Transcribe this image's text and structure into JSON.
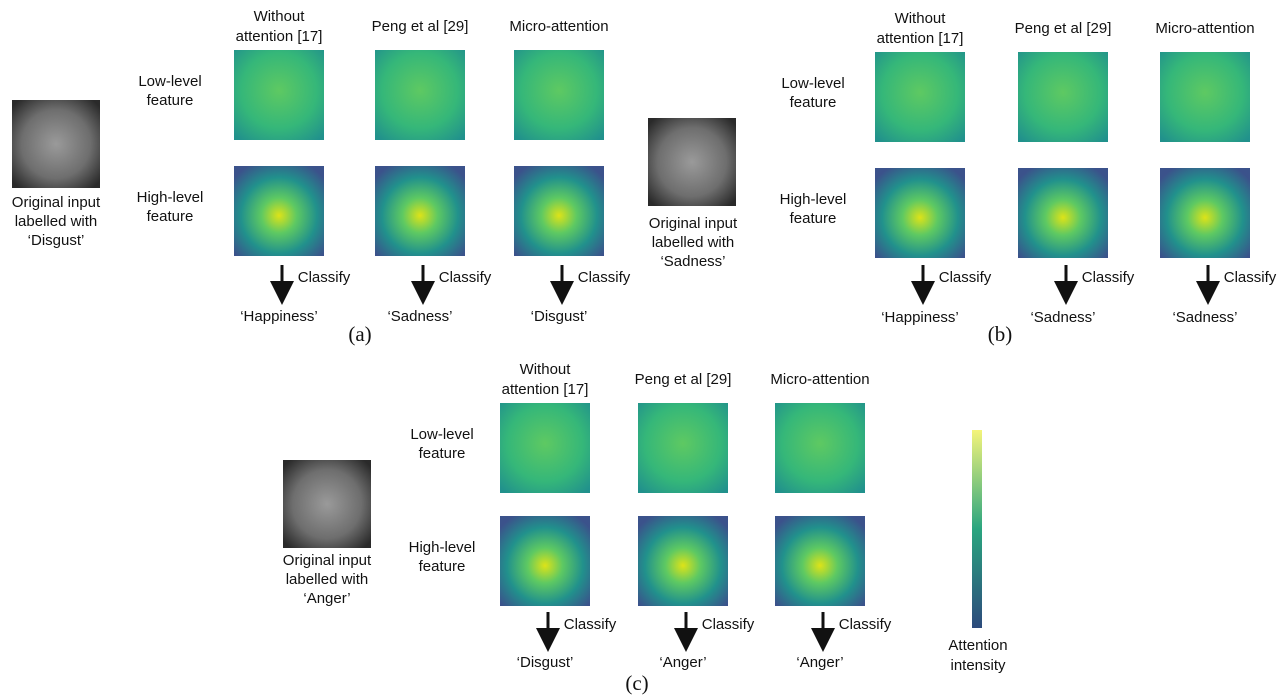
{
  "panels": [
    {
      "label": "(a)",
      "original": [
        "Original input",
        "labelled with",
        "‘Disgust’"
      ],
      "rows": [
        [
          "Low-level",
          "feature"
        ],
        [
          "High-level",
          "feature"
        ]
      ],
      "columns": [
        {
          "header": [
            "Without",
            "attention [17]"
          ],
          "action": "Classify",
          "prediction": "‘Happiness’"
        },
        {
          "header": [
            "Peng et al [29]"
          ],
          "action": "Classify",
          "prediction": "‘Sadness’"
        },
        {
          "header": [
            "Micro-attention"
          ],
          "action": "Classify",
          "prediction": "‘Disgust’"
        }
      ]
    },
    {
      "label": "(b)",
      "original": [
        "Original input",
        "labelled with",
        "‘Sadness’"
      ],
      "rows": [
        [
          "Low-level",
          "feature"
        ],
        [
          "High-level",
          "feature"
        ]
      ],
      "columns": [
        {
          "header": [
            "Without",
            "attention [17]"
          ],
          "action": "Classify",
          "prediction": "‘Happiness’"
        },
        {
          "header": [
            "Peng et al [29]"
          ],
          "action": "Classify",
          "prediction": "‘Sadness’"
        },
        {
          "header": [
            "Micro-attention"
          ],
          "action": "Classify",
          "prediction": "‘Sadness’"
        }
      ]
    },
    {
      "label": "(c)",
      "original": [
        "Original input",
        "labelled with",
        "‘Anger’"
      ],
      "rows": [
        [
          "Low-level",
          "feature"
        ],
        [
          "High-level",
          "feature"
        ]
      ],
      "columns": [
        {
          "header": [
            "Without",
            "attention [17]"
          ],
          "action": "Classify",
          "prediction": "‘Disgust’"
        },
        {
          "header": [
            "Peng et al [29]"
          ],
          "action": "Classify",
          "prediction": "‘Anger’"
        },
        {
          "header": [
            "Micro-attention"
          ],
          "action": "Classify",
          "prediction": "‘Anger’"
        }
      ]
    }
  ],
  "colorbar": {
    "label": [
      "Attention",
      "intensity"
    ]
  }
}
